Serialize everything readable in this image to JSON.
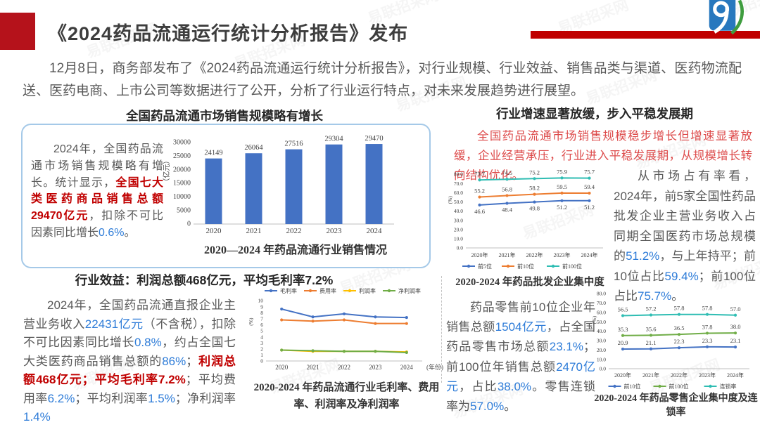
{
  "watermark": {
    "text": "易联招采网"
  },
  "header": {
    "title": "《2024药品流通运行统计分析报告》发布",
    "intro": "12月8日，商务部发布了《2024药品流通运行统计分析报告》，对行业规模、行业效益、销售品类与渠道、医药物流配送、医药电商、上市公司等数据进行了公开，分析了行业运行特点，对未来发展趋势进行展望。"
  },
  "left": {
    "chart1_title": "全国药品流通市场销售规模略有增长",
    "text1": [
      {
        "t": "2024年，全国药品流通市场销售规模略有增长。统计显示，"
      },
      {
        "t": "全国七大类医药商品销售总额29470亿元",
        "c": "red"
      },
      {
        "t": "，扣除不可比因素同比增长"
      },
      {
        "t": "0.6%",
        "c": "blue"
      },
      {
        "t": "。"
      }
    ],
    "section2_title": "行业效益：利润总额468亿元，平均毛利率7.2%",
    "text2": [
      {
        "t": "2024年，全国药品流通直报企业主营业务收入"
      },
      {
        "t": "22431亿元",
        "c": "blue"
      },
      {
        "t": "（不含税），扣除不可比因素同比增长"
      },
      {
        "t": "0.8%",
        "c": "blue"
      },
      {
        "t": "，约占全国七大类医药商品销售总额的"
      },
      {
        "t": "86%",
        "c": "blue"
      },
      {
        "t": "；"
      },
      {
        "t": "利润总额468亿元；平均毛利率7.2%",
        "c": "red"
      },
      {
        "t": "；平均费用率"
      },
      {
        "t": "6.2%",
        "c": "blue"
      },
      {
        "t": "；平均利润率"
      },
      {
        "t": "1.5%",
        "c": "blue"
      },
      {
        "t": "；净利润率"
      },
      {
        "t": "1.4%",
        "c": "blue"
      }
    ]
  },
  "right": {
    "section_title": "行业增速显著放缓，步入平稳发展期",
    "red_para": "全国药品流通市场销售规模稳步增长但增速显著放缓，企业经营承压，行业进入平稳发展期，从规模增长转向结构优化。",
    "text1": [
      {
        "t": "从市场占有率看，2024年，前5家全国性药品批发企业主营业务收入占同期全国医药市场总规模的"
      },
      {
        "t": "51.2%",
        "c": "blue"
      },
      {
        "t": "，与上年持平；前10位占比"
      },
      {
        "t": "59.4%",
        "c": "blue"
      },
      {
        "t": "；前100位占比"
      },
      {
        "t": "75.7%",
        "c": "blue"
      },
      {
        "t": "。"
      }
    ],
    "text2": [
      {
        "t": "药品零售前10位企业年销售总额"
      },
      {
        "t": "1504亿元",
        "c": "blue"
      },
      {
        "t": "，占全国药品零售市场总额"
      },
      {
        "t": "23.1%",
        "c": "blue"
      },
      {
        "t": "；前100位年销售总额"
      },
      {
        "t": "2470亿元",
        "c": "blue"
      },
      {
        "t": "，占比"
      },
      {
        "t": "38.0%",
        "c": "blue"
      },
      {
        "t": "。零售连锁率为"
      },
      {
        "t": "57.0%",
        "c": "blue"
      },
      {
        "t": "。"
      }
    ]
  },
  "chart_data": [
    {
      "type": "bar",
      "title": "2020—2024 年药品流通行业销售情况",
      "categories": [
        "2020",
        "2021",
        "2022",
        "2023",
        "2024"
      ],
      "values": [
        24149,
        26064,
        27516,
        29304,
        29470
      ],
      "ylabel": "（亿元）",
      "ylim": [
        0,
        30000
      ],
      "ytick_step": 5000,
      "bar_color": "#4472c4",
      "grid": false,
      "label_decimals": 0,
      "ytick_decimals": 0
    },
    {
      "type": "line",
      "title": "2020-2024 年药品流通行业毛利率、费用率、利润率及净利润率",
      "categories": [
        "2020",
        "2021",
        "2022",
        "2023",
        "2024"
      ],
      "x_suffix_label": "(年份)",
      "ylabel": "(%)",
      "ylim": [
        0,
        10
      ],
      "ytick_step": 1,
      "ytick_decimals": 0,
      "legend_position": "top",
      "point_labels": false,
      "grid": false,
      "series": [
        {
          "name": "毛利率",
          "color": "#4472c4",
          "values": [
            8.6,
            7.3,
            7.8,
            7.3,
            7.2
          ]
        },
        {
          "name": "费用率",
          "color": "#ed7d31",
          "values": [
            6.8,
            6.6,
            6.8,
            6.2,
            6.2
          ]
        },
        {
          "name": "利润率",
          "color": "#ffc000",
          "values": [
            1.8,
            1.6,
            1.6,
            1.6,
            1.5
          ]
        },
        {
          "name": "净利润率",
          "color": "#70ad47",
          "values": [
            1.8,
            1.7,
            1.6,
            1.6,
            1.4
          ]
        }
      ]
    },
    {
      "type": "line",
      "title": "2020-2024 年药品批发企业集中度",
      "categories": [
        "2020年",
        "2021年",
        "2022年",
        "2023年",
        "2024年"
      ],
      "ylabel": "(%)",
      "ylim": [
        0,
        80
      ],
      "ytick_step": 10,
      "ytick_decimals": 1,
      "legend_position": "bottom",
      "point_labels": true,
      "label_decimals": 1,
      "grid": false,
      "series": [
        {
          "name": "前5位",
          "color": "#4472c4",
          "values": [
            46.6,
            48.4,
            49.8,
            51.2,
            51.2
          ],
          "label_pos": "below"
        },
        {
          "name": "前10位",
          "color": "#ed7d31",
          "values": [
            55.2,
            56.8,
            58.2,
            59.5,
            59.4
          ],
          "label_pos": "above"
        },
        {
          "name": "前100位",
          "color": "#2fbdb3",
          "values": [
            73.7,
            74.5,
            75.2,
            75.9,
            75.7
          ],
          "label_pos": "above"
        }
      ]
    },
    {
      "type": "line",
      "title": "2020-2024 年药品零售企业集中度及连锁率",
      "categories": [
        "2020年",
        "2021年",
        "2022年",
        "2023年",
        "2024年"
      ],
      "ylabel": "(%)",
      "ylim": [
        0,
        80
      ],
      "ytick_step": 10,
      "ytick_decimals": 1,
      "legend_position": "bottom",
      "point_labels": true,
      "label_decimals": 1,
      "grid": false,
      "series": [
        {
          "name": "前10位",
          "color": "#4472c4",
          "values": [
            20.9,
            21.1,
            22.3,
            23.3,
            23.1
          ],
          "label_pos": "above"
        },
        {
          "name": "前100位",
          "color": "#70ad47",
          "values": [
            35.3,
            35.6,
            36.5,
            37.8,
            38.0
          ],
          "label_pos": "above"
        },
        {
          "name": "连锁率",
          "color": "#2fbdb3",
          "values": [
            56.5,
            57.2,
            57.8,
            57.8,
            57.0
          ],
          "label_pos": "above"
        }
      ]
    }
  ]
}
